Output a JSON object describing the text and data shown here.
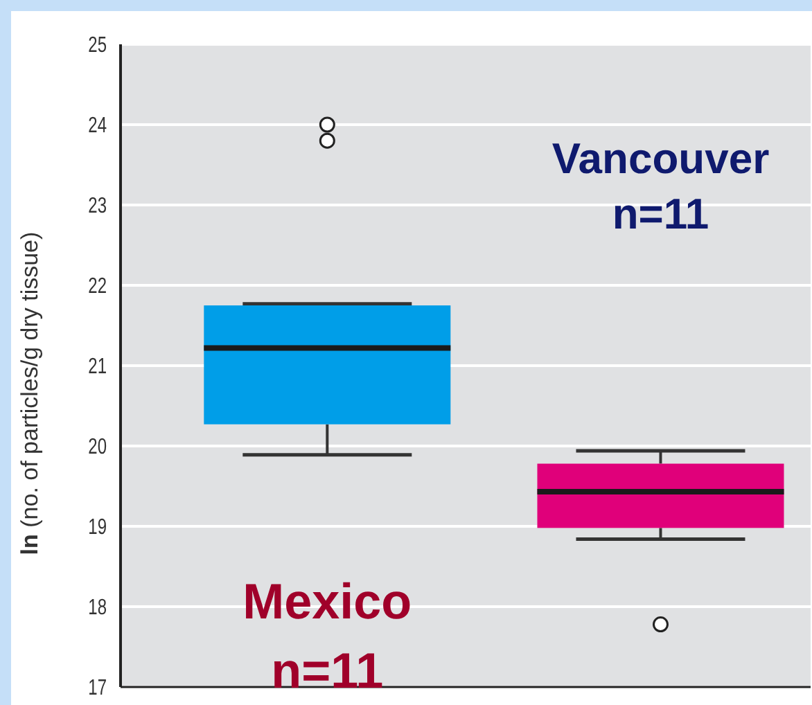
{
  "chart_data": {
    "type": "box",
    "ylabel": "ln (no. of particles/g dry tissue)",
    "categories": [
      "Mexico",
      "Vancouver"
    ],
    "colors": [
      "#009ee8",
      "#e0007a"
    ],
    "boxes": [
      {
        "low": 19.89,
        "q1": 20.27,
        "median": 21.22,
        "q3": 21.75,
        "high": 21.77,
        "outliers": [
          24.0,
          23.8
        ]
      },
      {
        "low": 18.84,
        "q1": 18.98,
        "median": 19.43,
        "q3": 19.78,
        "high": 19.94,
        "outliers": [
          17.78
        ]
      }
    ],
    "annotations": [
      "n=11",
      "n=11"
    ],
    "ylim": [
      17,
      25
    ],
    "yticks": [
      17,
      18,
      19,
      20,
      21,
      22,
      23,
      24,
      25
    ],
    "grid": "y"
  }
}
